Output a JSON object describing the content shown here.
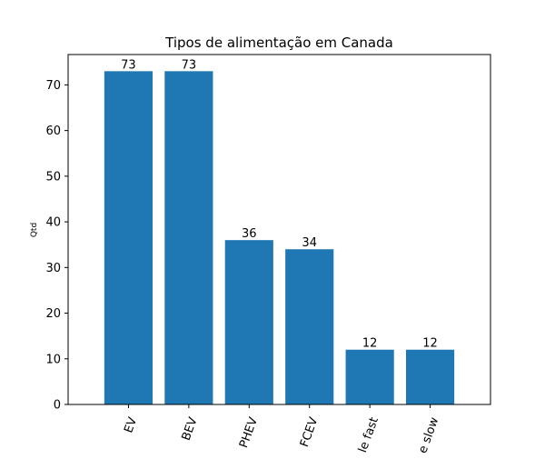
{
  "chart_data": {
    "type": "bar",
    "title": "Tipos de alimentação em Canada",
    "xlabel": "",
    "ylabel": "Qtd",
    "categories": [
      "EV",
      "BEV",
      "PHEV",
      "FCEV",
      "le fast",
      "e slow"
    ],
    "values": [
      73,
      73,
      36,
      34,
      12,
      12
    ],
    "ylim": [
      0,
      76.65
    ],
    "yticks": [
      "0",
      "10",
      "20",
      "30",
      "40",
      "50",
      "60",
      "70"
    ],
    "bar_color": "#1f77b4",
    "grid": false,
    "legend": "none"
  }
}
